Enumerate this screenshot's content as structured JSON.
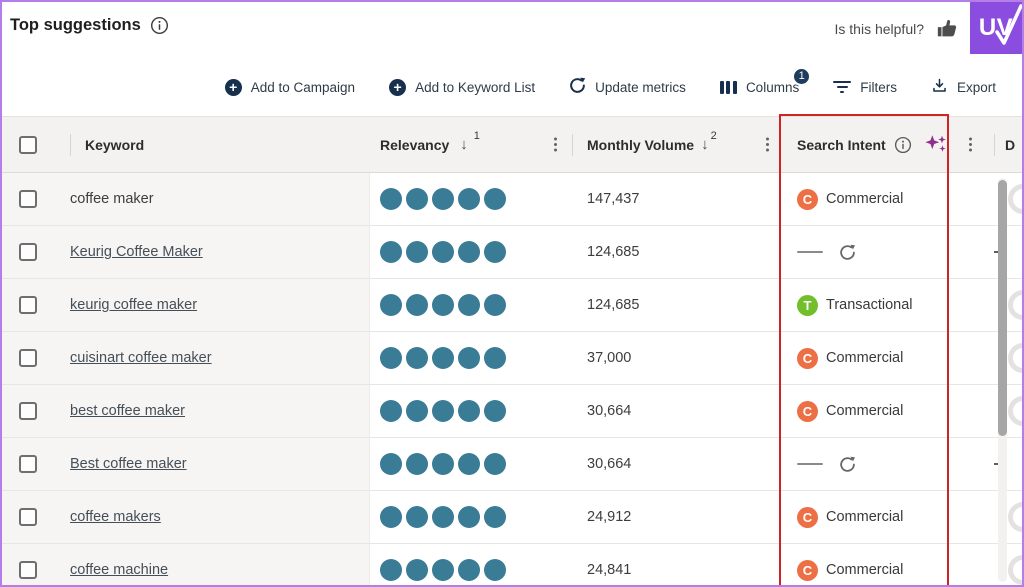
{
  "page": {
    "title": "Top suggestions",
    "helpful_label": "Is this helpful?",
    "logo_text": "UV"
  },
  "toolbar": {
    "add_to_campaign": "Add to Campaign",
    "add_to_keyword_list": "Add to Keyword List",
    "update_metrics": "Update metrics",
    "columns": "Columns",
    "columns_badge": "1",
    "filters": "Filters",
    "export": "Export"
  },
  "table": {
    "headers": {
      "keyword": "Keyword",
      "relevancy": "Relevancy",
      "relevancy_sort_order": "1",
      "monthly_volume": "Monthly Volume",
      "monthly_volume_sort_order": "2",
      "search_intent": "Search Intent",
      "last_column_partial": "D"
    },
    "rows": [
      {
        "keyword": "coffee maker",
        "is_link": false,
        "relevancy_dots": 5,
        "monthly_volume": "147,437",
        "intent_type": "commercial",
        "intent_label": "Commercial",
        "intent_initial": "C",
        "d_cell": ""
      },
      {
        "keyword": "Keurig Coffee Maker",
        "is_link": true,
        "relevancy_dots": 5,
        "monthly_volume": "124,685",
        "intent_type": "pending",
        "intent_label": "",
        "intent_initial": "",
        "d_cell": "—"
      },
      {
        "keyword": "keurig coffee maker",
        "is_link": true,
        "relevancy_dots": 5,
        "monthly_volume": "124,685",
        "intent_type": "transactional",
        "intent_label": "Transactional",
        "intent_initial": "T",
        "d_cell": ""
      },
      {
        "keyword": "cuisinart coffee maker",
        "is_link": true,
        "relevancy_dots": 5,
        "monthly_volume": "37,000",
        "intent_type": "commercial",
        "intent_label": "Commercial",
        "intent_initial": "C",
        "d_cell": ""
      },
      {
        "keyword": "best coffee maker",
        "is_link": true,
        "relevancy_dots": 5,
        "monthly_volume": "30,664",
        "intent_type": "commercial",
        "intent_label": "Commercial",
        "intent_initial": "C",
        "d_cell": ""
      },
      {
        "keyword": "Best coffee maker",
        "is_link": true,
        "relevancy_dots": 5,
        "monthly_volume": "30,664",
        "intent_type": "pending",
        "intent_label": "",
        "intent_initial": "",
        "d_cell": "—"
      },
      {
        "keyword": "coffee makers",
        "is_link": true,
        "relevancy_dots": 5,
        "monthly_volume": "24,912",
        "intent_type": "commercial",
        "intent_label": "Commercial",
        "intent_initial": "C",
        "d_cell": ""
      },
      {
        "keyword": "coffee machine",
        "is_link": true,
        "relevancy_dots": 5,
        "monthly_volume": "24,841",
        "intent_type": "commercial",
        "intent_label": "Commercial",
        "intent_initial": "C",
        "d_cell": ""
      }
    ]
  },
  "colors": {
    "accent_purple": "#8a4de0",
    "border_purple": "#b57de8",
    "navy": "#17304d",
    "teal_dot": "#3a7b96",
    "commercial_orange": "#ec6f45",
    "transactional_green": "#72bf2b",
    "highlight_red": "#cf2424"
  }
}
